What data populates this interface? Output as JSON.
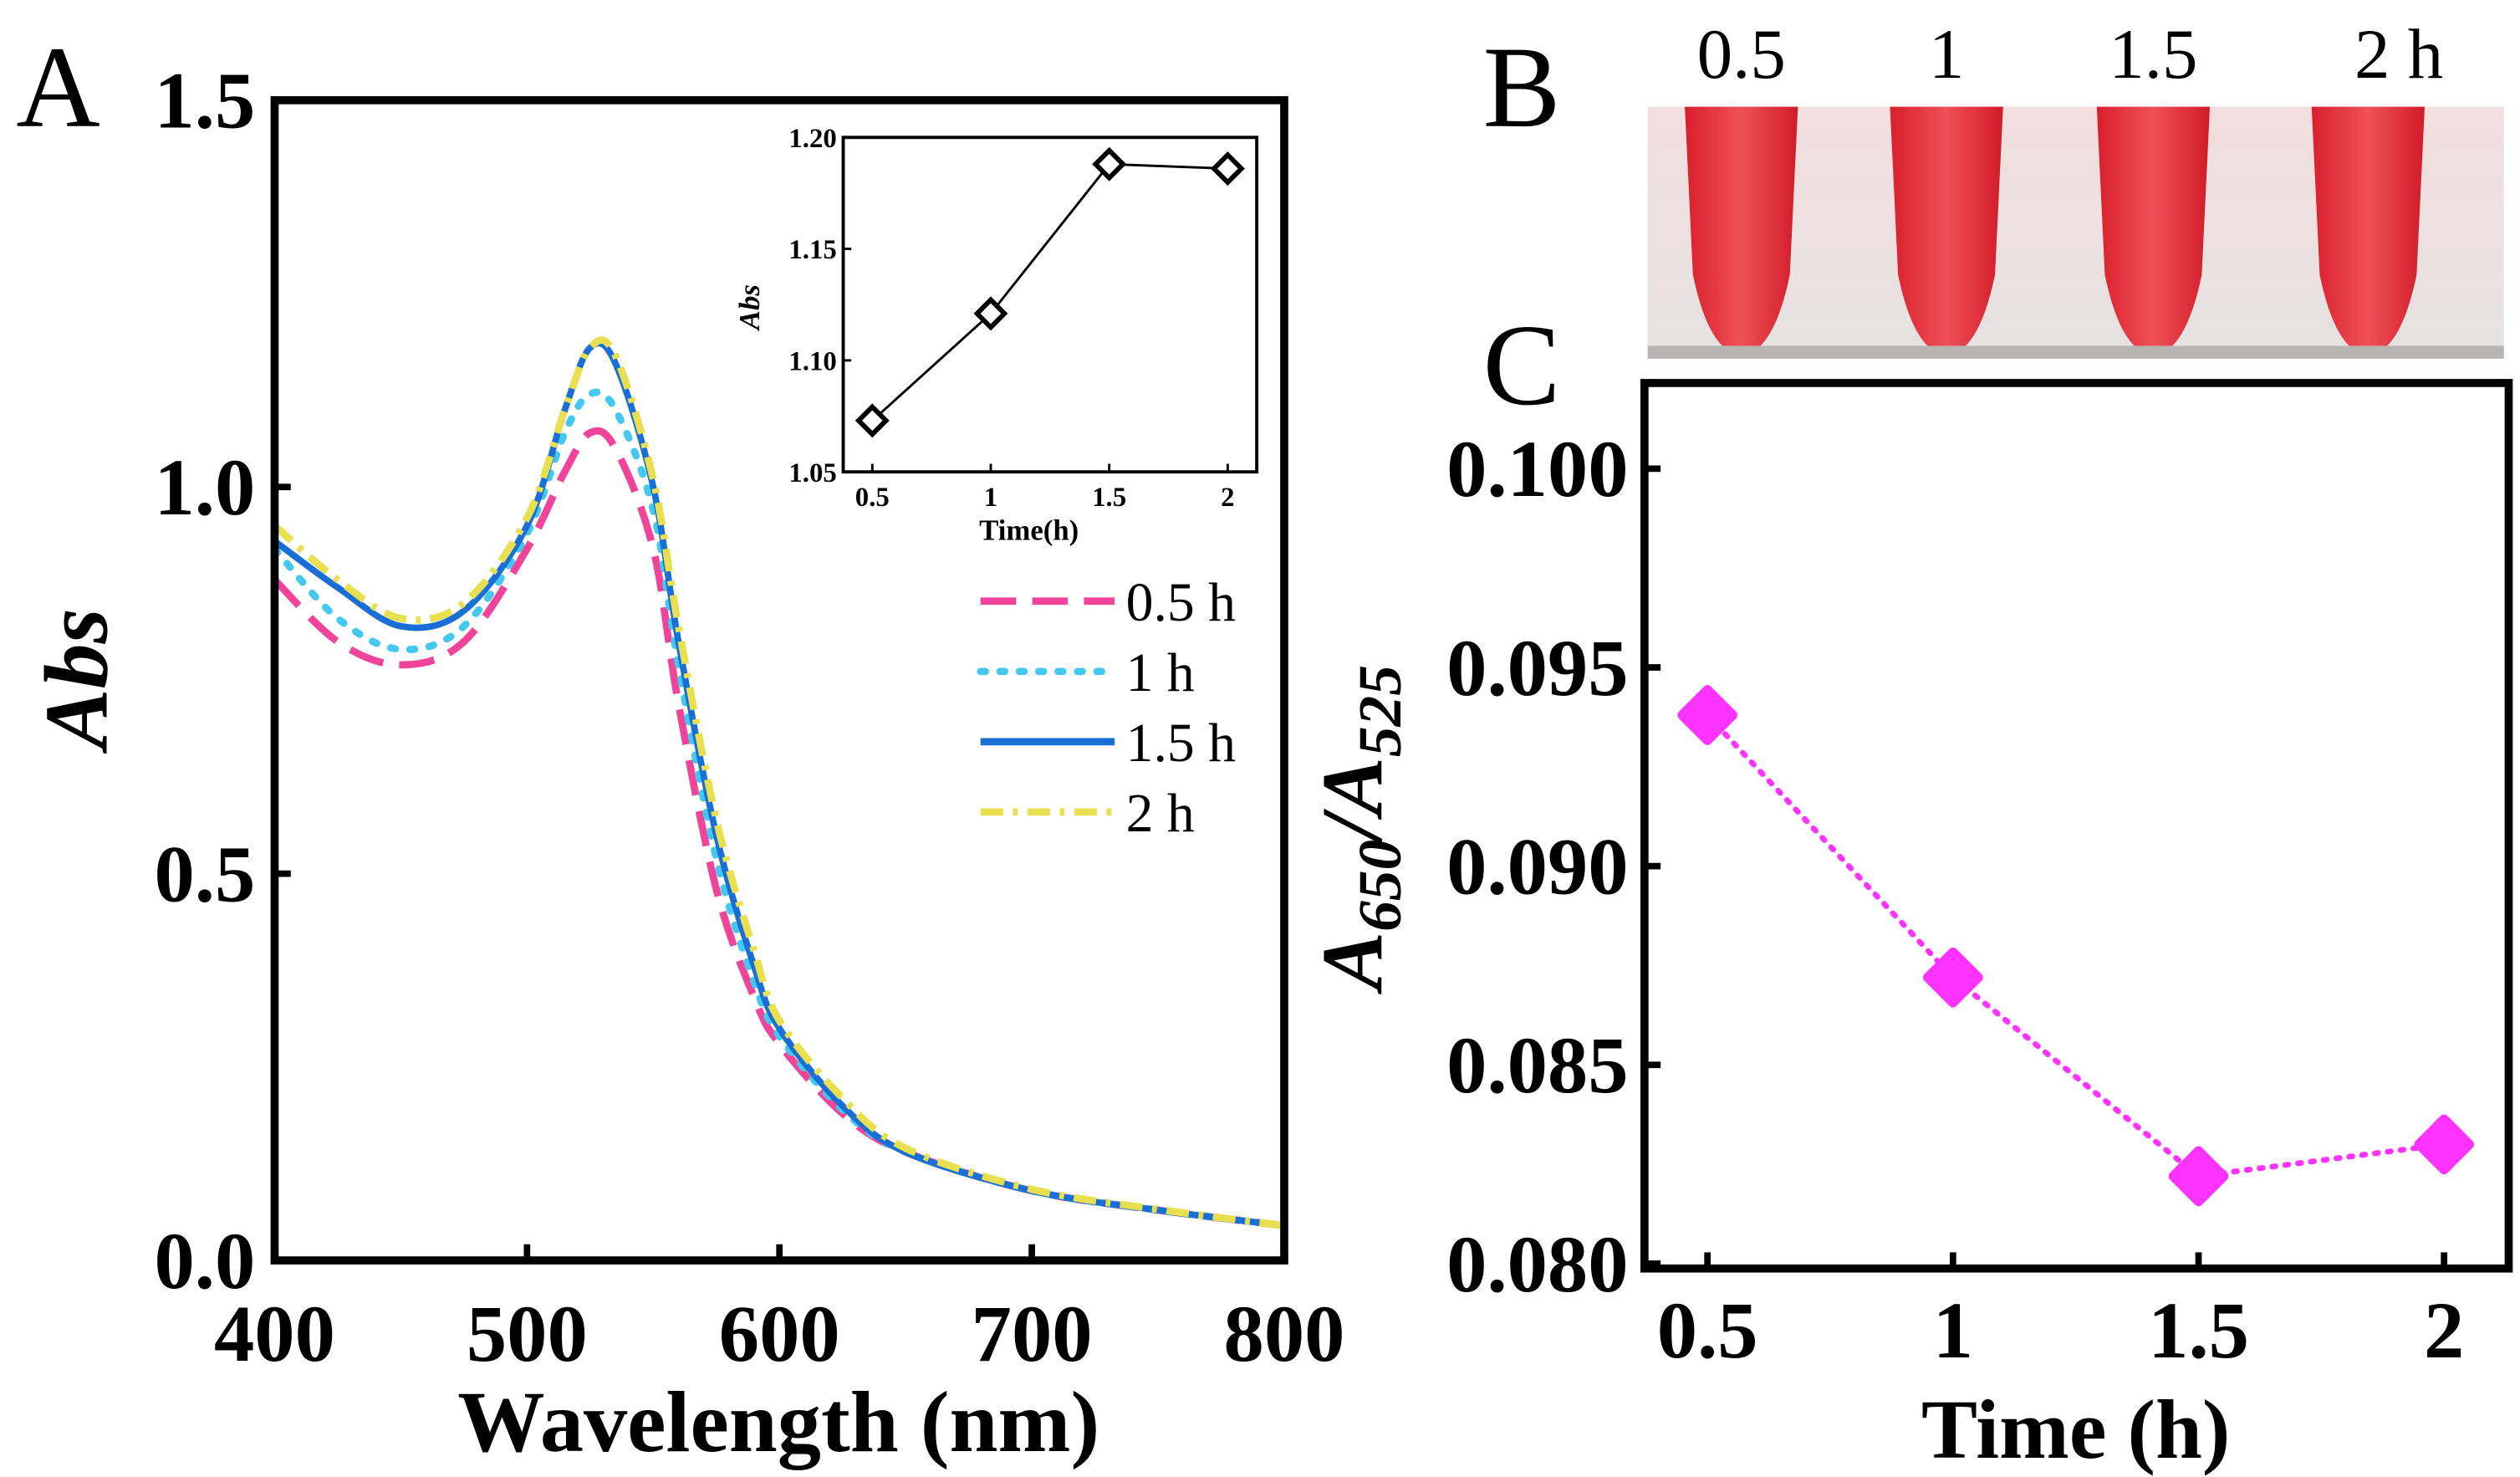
{
  "chart_data": [
    {
      "panel": "A",
      "type": "line",
      "xlabel": "Wavelength (nm)",
      "ylabel": "Abs",
      "xlim": [
        400,
        800
      ],
      "ylim": [
        0,
        1.5
      ],
      "xticks": [
        "400",
        "500",
        "600",
        "700",
        "800"
      ],
      "yticks": [
        "0.0",
        "0.5",
        "1.0",
        "1.5"
      ],
      "x": [
        400,
        425,
        450,
        475,
        500,
        515,
        525,
        535,
        550,
        560,
        575,
        590,
        600,
        625,
        650,
        700,
        750,
        800
      ],
      "series": [
        {
          "name": "0.5 h",
          "color": "#f0449a",
          "dash": "dashed",
          "values": [
            0.88,
            0.8,
            0.77,
            0.8,
            0.92,
            1.02,
            1.07,
            1.05,
            0.92,
            0.72,
            0.48,
            0.34,
            0.28,
            0.19,
            0.14,
            0.09,
            0.065,
            0.045
          ]
        },
        {
          "name": "1 h",
          "color": "#45c8f0",
          "dash": "dotted",
          "values": [
            0.92,
            0.83,
            0.79,
            0.82,
            0.94,
            1.07,
            1.12,
            1.1,
            0.97,
            0.77,
            0.52,
            0.36,
            0.29,
            0.195,
            0.14,
            0.09,
            0.065,
            0.045
          ]
        },
        {
          "name": "1.5 h",
          "color": "#1a6fd6",
          "dash": "solid",
          "values": [
            0.93,
            0.87,
            0.82,
            0.84,
            0.95,
            1.1,
            1.18,
            1.16,
            1.0,
            0.8,
            0.55,
            0.38,
            0.3,
            0.2,
            0.14,
            0.09,
            0.065,
            0.045
          ]
        },
        {
          "name": "2 h",
          "color": "#e8e050",
          "dash": "dashdot",
          "values": [
            0.95,
            0.88,
            0.83,
            0.85,
            0.96,
            1.1,
            1.18,
            1.17,
            1.01,
            0.82,
            0.57,
            0.4,
            0.31,
            0.21,
            0.145,
            0.092,
            0.066,
            0.045
          ]
        }
      ],
      "inset": {
        "type": "line",
        "xlabel": "Time(h)",
        "ylabel": "Abs",
        "xlim": [
          0.4,
          2.1
        ],
        "ylim": [
          1.05,
          1.2
        ],
        "xticks": [
          "0.5",
          "1",
          "1.5",
          "2"
        ],
        "yticks": [
          "1.05",
          "1.10",
          "1.15",
          "1.20"
        ],
        "x": [
          0.5,
          1,
          1.5,
          2
        ],
        "values": [
          1.073,
          1.121,
          1.188,
          1.186
        ]
      }
    },
    {
      "panel": "C",
      "type": "line",
      "xlabel": "Time (h)",
      "ylabel_main": "A",
      "ylabel_sub1": "650",
      "ylabel_slash": "/A",
      "ylabel_sub2": "525",
      "xlim": [
        0.375,
        2.125
      ],
      "ylim": [
        0.08,
        0.102
      ],
      "xticks": [
        "0.5",
        "1",
        "1.5",
        "2"
      ],
      "yticks": [
        "0.080",
        "0.085",
        "0.090",
        "0.095",
        "0.100"
      ],
      "x": [
        0.5,
        1,
        1.5,
        2
      ],
      "values": [
        0.0938,
        0.0872,
        0.0822,
        0.083
      ],
      "color": "#ff33ff"
    }
  ],
  "panel_labels": {
    "a": "A",
    "b": "B",
    "c": "C"
  },
  "photo": {
    "labels": [
      "0.5",
      "1",
      "1.5",
      "2  h"
    ],
    "tube_color": "#e8323c"
  }
}
